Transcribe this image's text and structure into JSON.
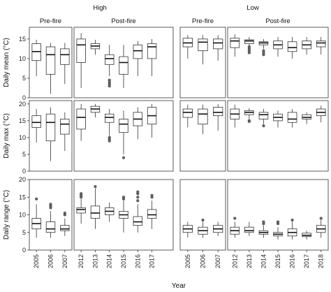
{
  "chart_data": {
    "type": "boxplot",
    "xlabel": "Year",
    "group_labels": [
      "High",
      "Low"
    ],
    "period_labels": [
      "Pre-fire",
      "Post-fire"
    ],
    "pre_years": [
      "2005",
      "2006",
      "2007"
    ],
    "post_years": [
      "2012",
      "2013",
      "2014",
      "2015",
      "2016",
      "2017",
      "2018"
    ],
    "rows": [
      {
        "ylabel": "Daily mean (°C)",
        "ylim": [
          0,
          18
        ],
        "yticks": [
          0,
          5,
          10,
          15
        ],
        "groups": {
          "High": {
            "pre": [
              {
                "min": 5.5,
                "q1": 9.5,
                "median": 11.8,
                "q3": 13.8,
                "max": 14.8,
                "outliers": []
              },
              {
                "min": 1.0,
                "q1": 6.0,
                "median": 11.0,
                "q3": 13.0,
                "max": 14.0,
                "outliers": []
              },
              {
                "min": 3.5,
                "q1": 8.5,
                "median": 11.0,
                "q3": 12.5,
                "max": 14.0,
                "outliers": []
              }
            ],
            "post": [
              {
                "min": 2.5,
                "q1": 9.0,
                "median": 13.5,
                "q3": 15.0,
                "max": 16.5,
                "outliers": []
              },
              {
                "min": 11.0,
                "q1": 12.5,
                "median": 13.2,
                "q3": 13.8,
                "max": 14.8,
                "outliers": []
              },
              {
                "min": 5.5,
                "q1": 8.5,
                "median": 10.0,
                "q3": 11.0,
                "max": 13.5,
                "outliers": [
                  4.5,
                  4.0,
                  3.5,
                  3.0
                ]
              },
              {
                "min": 2.5,
                "q1": 6.0,
                "median": 9.0,
                "q3": 10.5,
                "max": 13.5,
                "outliers": []
              },
              {
                "min": 5.5,
                "q1": 10.0,
                "median": 12.0,
                "q3": 13.5,
                "max": 14.5,
                "outliers": []
              },
              {
                "min": 5.5,
                "q1": 10.0,
                "median": 13.0,
                "q3": 13.8,
                "max": 15.0,
                "outliers": []
              }
            ]
          },
          "Low": {
            "pre": [
              {
                "min": 10.0,
                "q1": 13.0,
                "median": 14.0,
                "q3": 15.2,
                "max": 16.0,
                "outliers": []
              },
              {
                "min": 8.5,
                "q1": 12.0,
                "median": 14.2,
                "q3": 15.0,
                "max": 16.0,
                "outliers": []
              },
              {
                "min": 9.5,
                "q1": 12.5,
                "median": 14.0,
                "q3": 15.0,
                "max": 16.0,
                "outliers": []
              }
            ],
            "post": [
              {
                "min": 10.5,
                "q1": 12.8,
                "median": 14.5,
                "q3": 15.2,
                "max": 16.2,
                "outliers": []
              },
              {
                "min": 12.5,
                "q1": 13.8,
                "median": 14.5,
                "q3": 14.8,
                "max": 15.5,
                "outliers": [
                  13.0,
                  12.5,
                  12.0,
                  11.5
                ]
              },
              {
                "min": 12.5,
                "q1": 13.5,
                "median": 14.0,
                "q3": 14.3,
                "max": 15.0,
                "outliers": [
                  12.0,
                  11.5,
                  11.0
                ]
              },
              {
                "min": 10.5,
                "q1": 12.5,
                "median": 13.5,
                "q3": 14.5,
                "max": 15.5,
                "outliers": []
              },
              {
                "min": 10.0,
                "q1": 11.8,
                "median": 12.8,
                "q3": 14.3,
                "max": 15.5,
                "outliers": []
              },
              {
                "min": 11.0,
                "q1": 12.5,
                "median": 13.5,
                "q3": 14.5,
                "max": 15.5,
                "outliers": []
              },
              {
                "min": 11.0,
                "q1": 13.0,
                "median": 14.0,
                "q3": 14.5,
                "max": 15.5,
                "outliers": []
              }
            ]
          }
        }
      },
      {
        "ylabel": "Daily max (°C)",
        "ylim": [
          0,
          21
        ],
        "yticks": [
          0,
          5,
          10,
          15,
          20
        ],
        "groups": {
          "High": {
            "pre": [
              {
                "min": 8.5,
                "q1": 13.0,
                "median": 14.5,
                "q3": 16.5,
                "max": 18.5,
                "outliers": []
              },
              {
                "min": 3.0,
                "q1": 9.0,
                "median": 14.5,
                "q3": 17.0,
                "max": 19.0,
                "outliers": []
              },
              {
                "min": 6.0,
                "q1": 11.0,
                "median": 14.0,
                "q3": 15.5,
                "max": 17.5,
                "outliers": []
              }
            ],
            "post": [
              {
                "min": 9.0,
                "q1": 12.5,
                "median": 16.0,
                "q3": 18.5,
                "max": 20.0,
                "outliers": []
              },
              {
                "min": 16.0,
                "q1": 17.5,
                "median": 18.5,
                "q3": 19.3,
                "max": 20.0,
                "outliers": []
              },
              {
                "min": 10.5,
                "q1": 14.5,
                "median": 16.0,
                "q3": 17.0,
                "max": 18.5,
                "outliers": [
                  10.0,
                  9.5,
                  9.0
                ]
              },
              {
                "min": 5.0,
                "q1": 11.5,
                "median": 14.0,
                "q3": 15.5,
                "max": 18.0,
                "outliers": [
                  4.0
                ]
              },
              {
                "min": 9.5,
                "q1": 13.5,
                "median": 15.5,
                "q3": 17.5,
                "max": 19.0,
                "outliers": []
              },
              {
                "min": 10.0,
                "q1": 14.0,
                "median": 16.5,
                "q3": 19.0,
                "max": 20.0,
                "outliers": []
              }
            ]
          },
          "Low": {
            "pre": [
              {
                "min": 13.0,
                "q1": 16.0,
                "median": 17.5,
                "q3": 18.5,
                "max": 19.8,
                "outliers": []
              },
              {
                "min": 11.0,
                "q1": 14.0,
                "median": 17.0,
                "q3": 18.5,
                "max": 19.8,
                "outliers": []
              },
              {
                "min": 12.0,
                "q1": 16.5,
                "median": 17.5,
                "q3": 19.0,
                "max": 20.0,
                "outliers": []
              }
            ],
            "post": [
              {
                "min": 13.0,
                "q1": 15.5,
                "median": 17.0,
                "q3": 18.5,
                "max": 19.8,
                "outliers": []
              },
              {
                "min": 15.5,
                "q1": 16.8,
                "median": 17.5,
                "q3": 18.0,
                "max": 18.8,
                "outliers": [
                  15.0,
                  14.8
                ]
              },
              {
                "min": 14.0,
                "q1": 15.5,
                "median": 16.8,
                "q3": 17.5,
                "max": 18.5,
                "outliers": [
                  13.5
                ]
              },
              {
                "min": 13.0,
                "q1": 15.0,
                "median": 16.0,
                "q3": 17.0,
                "max": 18.0,
                "outliers": []
              },
              {
                "min": 13.0,
                "q1": 14.5,
                "median": 15.5,
                "q3": 17.5,
                "max": 18.5,
                "outliers": []
              },
              {
                "min": 14.0,
                "q1": 15.5,
                "median": 16.0,
                "q3": 16.8,
                "max": 17.5,
                "outliers": []
              },
              {
                "min": 14.5,
                "q1": 16.5,
                "median": 17.5,
                "q3": 18.5,
                "max": 19.5,
                "outliers": []
              }
            ]
          }
        }
      },
      {
        "ylabel": "Daily range (°C)",
        "ylim": [
          0,
          20
        ],
        "yticks": [
          0,
          5,
          10,
          15,
          20
        ],
        "groups": {
          "High": {
            "pre": [
              {
                "min": 3.5,
                "q1": 6.0,
                "median": 7.5,
                "q3": 9.0,
                "max": 13.0,
                "outliers": [
                  14.5
                ]
              },
              {
                "min": 3.5,
                "q1": 5.0,
                "median": 6.0,
                "q3": 8.0,
                "max": 11.0,
                "outliers": [
                  12.0,
                  12.5,
                  13.0
                ]
              },
              {
                "min": 4.0,
                "q1": 5.5,
                "median": 6.0,
                "q3": 7.0,
                "max": 9.0,
                "outliers": [
                  10.0,
                  10.5
                ]
              }
            ],
            "post": [
              {
                "min": 7.5,
                "q1": 10.5,
                "median": 11.5,
                "q3": 12.0,
                "max": 14.5,
                "outliers": [
                  15.0,
                  15.5,
                  16.0
                ]
              },
              {
                "min": 6.0,
                "q1": 9.0,
                "median": 10.5,
                "q3": 12.5,
                "max": 17.5,
                "outliers": [
                  18.0
                ]
              },
              {
                "min": 8.0,
                "q1": 10.0,
                "median": 11.0,
                "q3": 12.0,
                "max": 13.5,
                "outliers": []
              },
              {
                "min": 5.0,
                "q1": 9.0,
                "median": 10.0,
                "q3": 11.0,
                "max": 14.0,
                "outliers": [
                  14.5,
                  15.0
                ]
              },
              {
                "min": 5.0,
                "q1": 7.0,
                "median": 8.0,
                "q3": 9.5,
                "max": 13.0,
                "outliers": [
                  14.0,
                  15.0,
                  16.0,
                  16.5
                ]
              },
              {
                "min": 6.0,
                "q1": 9.0,
                "median": 10.0,
                "q3": 11.5,
                "max": 14.0,
                "outliers": [
                  15.0,
                  15.5
                ]
              }
            ]
          },
          "Low": {
            "pre": [
              {
                "min": 3.5,
                "q1": 5.0,
                "median": 6.0,
                "q3": 7.0,
                "max": 8.0,
                "outliers": []
              },
              {
                "min": 3.5,
                "q1": 4.5,
                "median": 5.5,
                "q3": 6.5,
                "max": 8.0,
                "outliers": [
                  8.5
                ]
              },
              {
                "min": 4.0,
                "q1": 5.0,
                "median": 6.0,
                "q3": 7.0,
                "max": 8.0,
                "outliers": []
              }
            ],
            "post": [
              {
                "min": 3.5,
                "q1": 4.5,
                "median": 5.5,
                "q3": 6.5,
                "max": 8.0,
                "outliers": [
                  9.0
                ]
              },
              {
                "min": 4.0,
                "q1": 5.0,
                "median": 5.5,
                "q3": 6.5,
                "max": 8.0,
                "outliers": []
              },
              {
                "min": 3.5,
                "q1": 4.5,
                "median": 5.0,
                "q3": 5.5,
                "max": 7.0,
                "outliers": [
                  7.5,
                  8.0
                ]
              },
              {
                "min": 3.0,
                "q1": 4.0,
                "median": 4.5,
                "q3": 5.0,
                "max": 6.5,
                "outliers": [
                  7.5,
                  8.0
                ]
              },
              {
                "min": 3.0,
                "q1": 4.0,
                "median": 5.0,
                "q3": 6.0,
                "max": 8.0,
                "outliers": [
                  8.5
                ]
              },
              {
                "min": 3.0,
                "q1": 3.8,
                "median": 4.2,
                "q3": 4.8,
                "max": 5.5,
                "outliers": []
              },
              {
                "min": 3.5,
                "q1": 5.0,
                "median": 6.0,
                "q3": 7.0,
                "max": 8.5,
                "outliers": [
                  9.0
                ]
              }
            ]
          }
        }
      }
    ]
  }
}
